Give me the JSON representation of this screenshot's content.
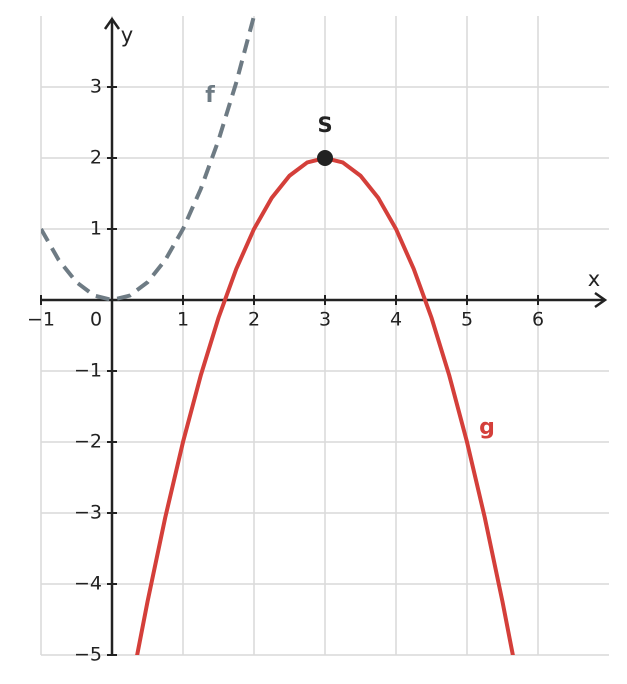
{
  "chart_data": {
    "type": "line",
    "x_label": "x",
    "y_label": "y",
    "xlim": [
      -1,
      7
    ],
    "ylim": [
      -5,
      4
    ],
    "xticks": [
      {
        "value": -1,
        "label": "−1"
      },
      0,
      1,
      2,
      3,
      4,
      5,
      6
    ],
    "yticks": [
      {
        "value": -5,
        "label": "−5"
      },
      {
        "value": -4,
        "label": "−4"
      },
      {
        "value": -3,
        "label": "−3"
      },
      {
        "value": -2,
        "label": "−2"
      },
      {
        "value": -1,
        "label": "−1"
      },
      1,
      2,
      3
    ],
    "grid": true,
    "series": [
      {
        "name": "f",
        "color": "#6e7b84",
        "dashed": true,
        "x": [
          -1,
          -0.75,
          -0.5,
          -0.25,
          0,
          0.25,
          0.5,
          0.75,
          1,
          1.25,
          1.5,
          1.75,
          2
        ],
        "values": [
          1,
          0.5625,
          0.25,
          0.0625,
          0,
          0.0625,
          0.25,
          0.5625,
          1,
          1.5625,
          2.25,
          3.0625,
          4
        ]
      },
      {
        "name": "g",
        "color": "#d43f3a",
        "dashed": false,
        "x": [
          0.35,
          0.5,
          0.75,
          1,
          1.25,
          1.5,
          1.75,
          2,
          2.25,
          2.5,
          2.75,
          3,
          3.25,
          3.5,
          3.75,
          4,
          4.25,
          4.5,
          4.75,
          5,
          5.25,
          5.5,
          5.65
        ],
        "values": [
          -5.0225,
          -4.25,
          -3.0625,
          -2,
          -1.0625,
          -0.25,
          0.4375,
          1,
          1.4375,
          1.75,
          1.9375,
          2,
          1.9375,
          1.75,
          1.4375,
          1,
          0.4375,
          -0.25,
          -1.0625,
          -2,
          -3.0625,
          -4.25,
          -5.0225
        ]
      }
    ],
    "points": [
      {
        "label": "S",
        "x": 3,
        "y": 2,
        "color": "#222"
      }
    ]
  }
}
